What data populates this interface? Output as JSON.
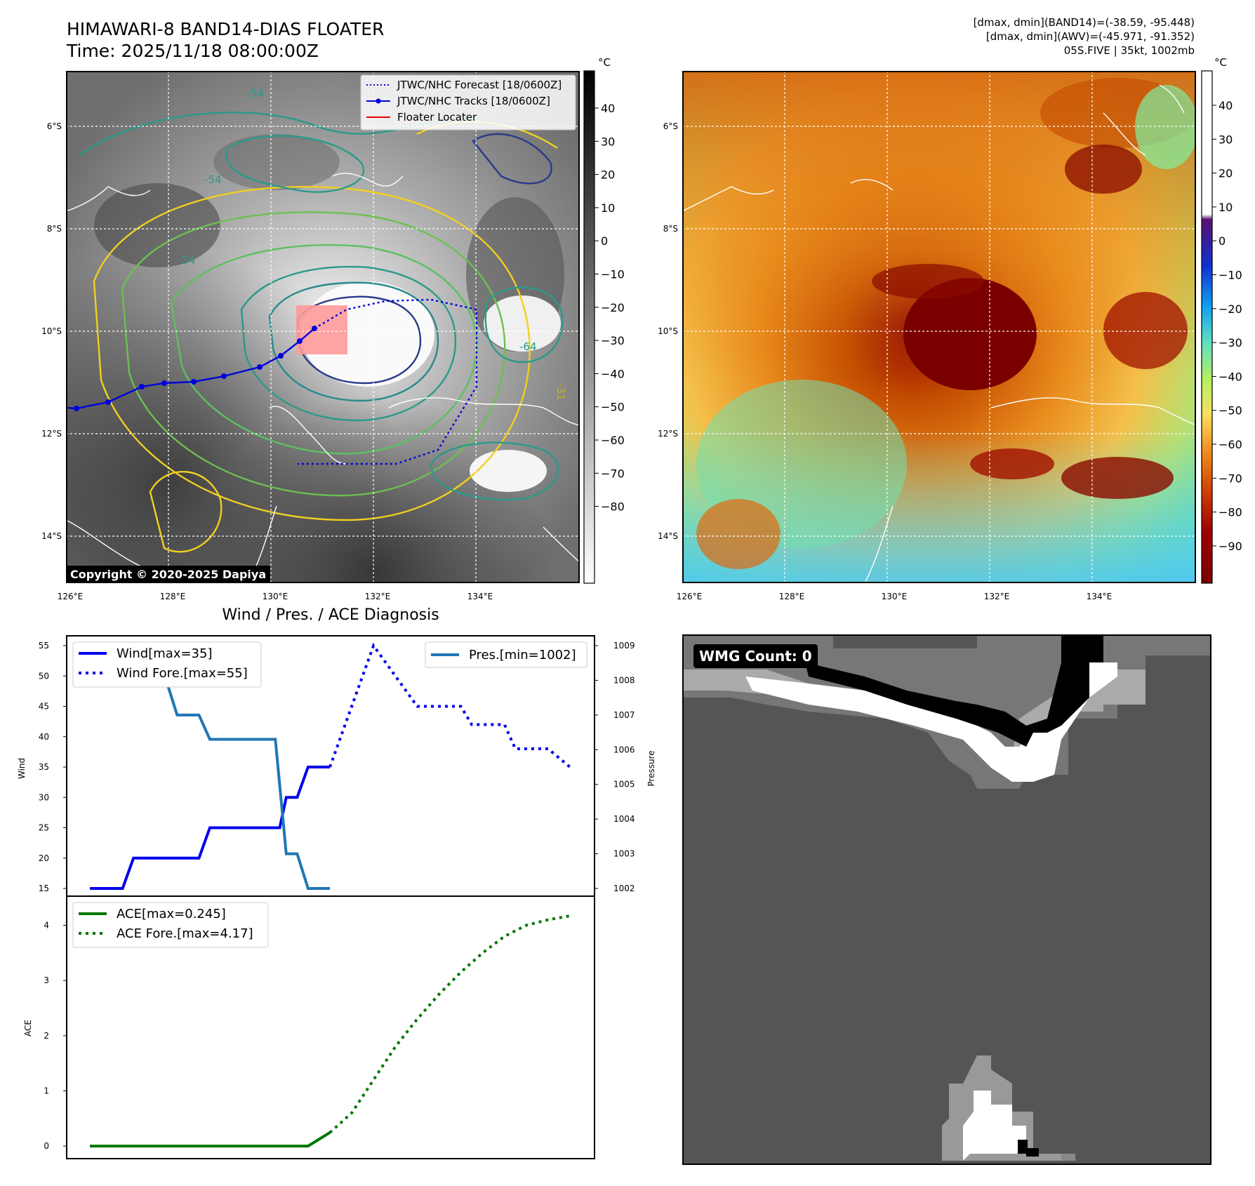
{
  "header": {
    "title_line1": "HIMAWARI-8 BAND14-DIAS FLOATER",
    "title_line2": "Time: 2025/11/18 08:00:00Z",
    "info_line1": "[dmax, dmin](BAND14)=(-38.59, -95.448)",
    "info_line2": "[dmax, dmin](AWV)=(-45.971, -91.352)",
    "info_line3": "05S.FIVE | 35kt, 1002mb"
  },
  "maps": {
    "lat_labels": [
      "6°S",
      "8°S",
      "10°S",
      "12°S",
      "14°S"
    ],
    "lon_labels": [
      "126°E",
      "128°E",
      "130°E",
      "132°E",
      "134°E"
    ],
    "copyright": "Copyright © 2020-2025 Dapiya",
    "contour_labels": [
      "-54",
      "-54",
      "-54",
      "-64",
      "-31"
    ],
    "legend": [
      {
        "label": "JTWC/NHC Forecast [18/0600Z]",
        "color": "#0000dd",
        "style": "dotted"
      },
      {
        "label": "JTWC/NHC Tracks [18/0600Z]",
        "color": "#0000dd",
        "style": "solid-marker"
      },
      {
        "label": "Floater Locater",
        "color": "#ee0000",
        "style": "solid"
      }
    ],
    "left_cbar": {
      "unit": "°C",
      "ticks": [
        "40",
        "30",
        "20",
        "10",
        "0",
        "−10",
        "−20",
        "−30",
        "−40",
        "−50",
        "−60",
        "−70",
        "−80"
      ]
    },
    "right_cbar": {
      "unit": "°C",
      "ticks": [
        "40",
        "30",
        "20",
        "10",
        "0",
        "−10",
        "−20",
        "−30",
        "−40",
        "−50",
        "−60",
        "−70",
        "−80",
        "−90"
      ]
    }
  },
  "diagnosis": {
    "title": "Wind / Pres. / ACE Diagnosis",
    "wind_ylabel": "Wind",
    "pres_ylabel": "Pressure",
    "ace_ylabel": "ACE",
    "legend_wind": "Wind[max=35]",
    "legend_wind_fore": "Wind Fore.[max=55]",
    "legend_pres": "Pres.[min=1002]",
    "legend_ace": "ACE[max=0.245]",
    "legend_ace_fore": "ACE Fore.[max=4.17]",
    "wmg_label": "WMG Count: 0"
  },
  "colors": {
    "wind": "#0000ee",
    "pressure": "#1f77b4",
    "ace": "#007700",
    "track": "#0000dd",
    "floater": "#ff9999"
  },
  "chart_data": [
    {
      "type": "line",
      "title": "Wind / Pres. / ACE Diagnosis",
      "ylabel": "Wind",
      "ylim": [
        15,
        55
      ],
      "yticks": [
        15,
        20,
        25,
        30,
        35,
        40,
        45,
        50,
        55
      ],
      "x": [
        0,
        1,
        2,
        3,
        4,
        5,
        6,
        7,
        8,
        9,
        10,
        11,
        12,
        13,
        14,
        15,
        16,
        17,
        18,
        19,
        20,
        21,
        22
      ],
      "series": [
        {
          "name": "Wind[max=35]",
          "style": "solid",
          "x": [
            0,
            1,
            1.5,
            2,
            3,
            5,
            5.5,
            6,
            8,
            8.5,
            8.7,
            9,
            9.5,
            10,
            10.5,
            11
          ],
          "values": [
            15,
            15,
            15,
            20,
            20,
            20,
            25,
            25,
            25,
            25,
            25,
            30,
            30,
            35,
            35,
            35
          ]
        },
        {
          "name": "Wind Fore.[max=55]",
          "style": "dotted",
          "x": [
            11,
            13,
            15,
            17,
            17.5,
            18,
            19,
            19.5,
            20,
            21,
            22
          ],
          "values": [
            35,
            55,
            45,
            45,
            42,
            42,
            42,
            38,
            38,
            38,
            35
          ]
        }
      ],
      "pressure": {
        "name": "Pres.[min=1002]",
        "ylabel": "Pressure",
        "ylim": [
          1002,
          1009
        ],
        "yticks": [
          1002,
          1003,
          1004,
          1005,
          1006,
          1007,
          1008,
          1009
        ],
        "x": [
          0,
          3,
          4,
          5,
          5.5,
          6,
          8.5,
          9,
          9.5,
          10,
          10.5,
          11
        ],
        "values": [
          1009,
          1009,
          1007,
          1007,
          1006.3,
          1006.3,
          1006.3,
          1003,
          1003,
          1002,
          1002,
          1002
        ]
      }
    },
    {
      "type": "line",
      "ylabel": "ACE",
      "ylim": [
        -0.1,
        4.4
      ],
      "yticks": [
        0,
        1,
        2,
        3,
        4
      ],
      "series": [
        {
          "name": "ACE[max=0.245]",
          "style": "solid",
          "x": [
            0,
            10,
            11
          ],
          "values": [
            0,
            0,
            0.245
          ]
        },
        {
          "name": "ACE Fore.[max=4.17]",
          "style": "dotted",
          "x": [
            11,
            12,
            13,
            14,
            15,
            16,
            17,
            18,
            19,
            20,
            21,
            22
          ],
          "values": [
            0.245,
            0.6,
            1.2,
            1.8,
            2.3,
            2.75,
            3.15,
            3.5,
            3.8,
            4.0,
            4.1,
            4.17
          ]
        }
      ]
    }
  ]
}
